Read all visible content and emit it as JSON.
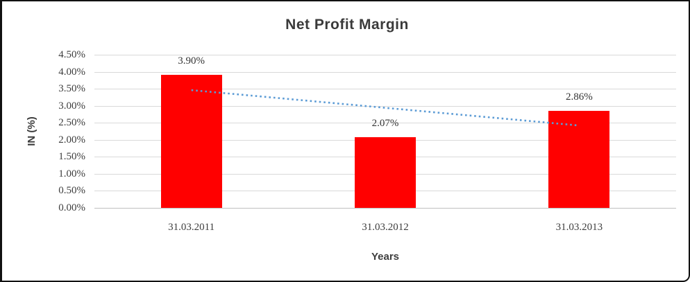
{
  "window": {
    "background": "#FFFFFF",
    "border_color": "#111111"
  },
  "chart_data": {
    "type": "bar",
    "title": "Net Profit Margin",
    "xlabel": "Years",
    "ylabel": "IN (%)",
    "categories": [
      "31.03.2011",
      "31.03.2012",
      "31.03.2013"
    ],
    "values": [
      3.9,
      2.07,
      2.86
    ],
    "data_labels": [
      "3.90%",
      "2.07%",
      "2.86%"
    ],
    "ylim": [
      0,
      4.5
    ],
    "ytick_step": 0.5,
    "ytick_labels": [
      "0.00%",
      "0.50%",
      "1.00%",
      "1.50%",
      "2.00%",
      "2.50%",
      "3.00%",
      "3.50%",
      "4.00%",
      "4.50%"
    ],
    "grid": true,
    "legend": "none",
    "bar_color": "#FF0000",
    "gridline_color": "#D9D9D9",
    "axis_line_color": "#BFBFBF",
    "title_color": "#3A3A3A",
    "text_color": "#3D3D3D",
    "trendline": {
      "type": "linear",
      "style": "dotted",
      "color": "#5B9BD5",
      "endpoints": [
        3.46,
        2.42
      ]
    }
  }
}
